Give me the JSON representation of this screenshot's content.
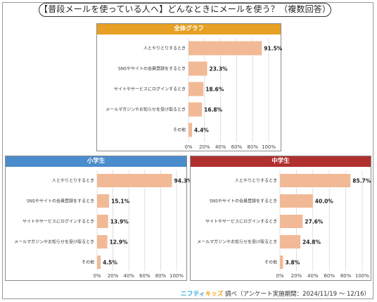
{
  "title": "【普段メールを使っている人へ】どんなときにメールを使う？（複数回答）",
  "credit": {
    "brand_main": "ニフティ",
    "brand_kids": "キッズ",
    "text": "調べ（アンケート実施期間：2024/11/19 ～ 12/16）"
  },
  "colors": {
    "bar": "#f2b996",
    "overall_header": "#e6a023",
    "elementary_header": "#4a8ccc",
    "junior_header": "#b0302f",
    "grid": "#d9d9d9"
  },
  "chart_data": [
    {
      "type": "bar",
      "orientation": "horizontal",
      "title": "全体グラフ",
      "categories": [
        "人とやりとりするとき",
        "SNSやサイトの会員登録をするとき",
        "サイトやサービスにログインするとき",
        "メールマガジンやお知らせを受け取るとき",
        "その他"
      ],
      "values": [
        91.5,
        23.3,
        18.6,
        16.8,
        4.4
      ],
      "value_labels": [
        "91.5%",
        "23.3%",
        "18.6%",
        "16.8%",
        "4.4%"
      ],
      "xlim": [
        0,
        100
      ],
      "xticks": [
        "0%",
        "20%",
        "40%",
        "60%",
        "80%",
        "100%"
      ],
      "grid": true
    },
    {
      "type": "bar",
      "orientation": "horizontal",
      "title": "小学生",
      "categories": [
        "人とやりとりするとき",
        "SNSやサイトの会員登録をするとき",
        "サイトやサービスにログインするとき",
        "メールマガジンやお知らせを受け取るとき",
        "その他"
      ],
      "values": [
        94.3,
        15.1,
        13.9,
        12.9,
        4.5
      ],
      "value_labels": [
        "94.3%",
        "15.1%",
        "13.9%",
        "12.9%",
        "4.5%"
      ],
      "xlim": [
        0,
        100
      ],
      "xticks": [
        "0%",
        "20%",
        "40%",
        "60%",
        "80%",
        "100%"
      ],
      "grid": true
    },
    {
      "type": "bar",
      "orientation": "horizontal",
      "title": "中学生",
      "categories": [
        "人とやりとりするとき",
        "SNSやサイトの会員登録をするとき",
        "サイトやサービスにログインするとき",
        "メールマガジンやお知らせを受け取るとき",
        "その他"
      ],
      "values": [
        85.7,
        40.0,
        27.6,
        24.8,
        3.8
      ],
      "value_labels": [
        "85.7%",
        "40.0%",
        "27.6%",
        "24.8%",
        "3.8%"
      ],
      "xlim": [
        0,
        100
      ],
      "xticks": [
        "0%",
        "20%",
        "40%",
        "60%",
        "80%",
        "100%"
      ],
      "grid": true
    }
  ]
}
